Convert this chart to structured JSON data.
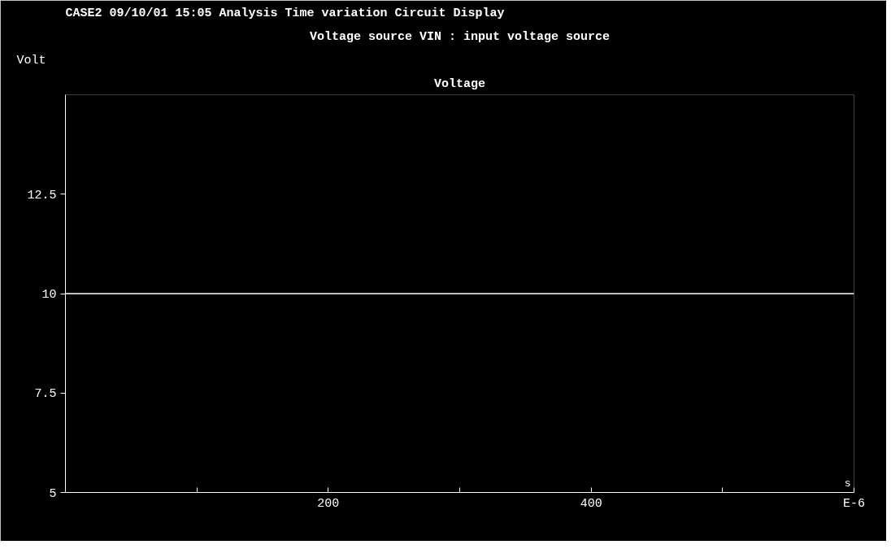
{
  "chart_data": {
    "type": "line",
    "title": "CASE2 09/10/01 15:05 Analysis Time variation Circuit Display",
    "subtitle": "Voltage source VIN : input voltage source",
    "ylabel": "Volt",
    "xlabel": "s",
    "x": [
      0,
      600
    ],
    "series": [
      {
        "name": "Voltage",
        "color": "#ffffff",
        "values": [
          10,
          10
        ]
      }
    ],
    "xlim": [
      0,
      600
    ],
    "ylim": [
      5,
      15
    ],
    "xticks": [
      {
        "value": 100,
        "label": null
      },
      200,
      {
        "value": 300,
        "label": null
      },
      400,
      {
        "value": 500,
        "label": null
      },
      {
        "value": 600,
        "label": "E-6"
      }
    ],
    "yticks": [
      5,
      7.5,
      10,
      12.5
    ],
    "grid": false,
    "marker": "none",
    "line_style": "solid"
  }
}
